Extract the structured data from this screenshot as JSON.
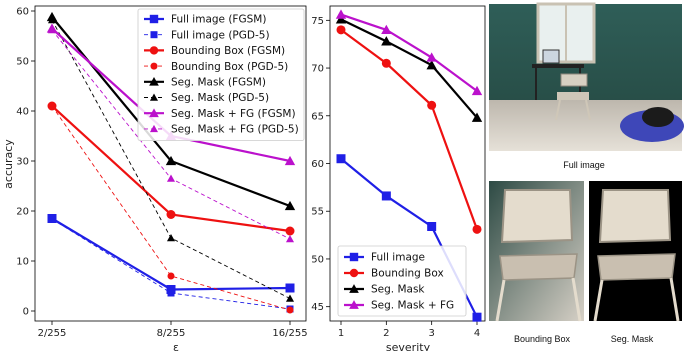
{
  "chart_data": [
    {
      "type": "line",
      "xlabel": "ε",
      "ylabel": "accuracy",
      "categories": [
        "2/255",
        "8/255",
        "16/255"
      ],
      "ylim": [
        -2,
        61
      ],
      "yticks": [
        0,
        10,
        20,
        30,
        40,
        50,
        60
      ],
      "grid": false,
      "legend_position": "top-right",
      "series": [
        {
          "name": "Full image (FGSM)",
          "values": [
            18.5,
            4.3,
            4.6
          ],
          "color": "#1f1fe6",
          "dashed": false,
          "marker": "square"
        },
        {
          "name": "Full image (PGD-5)",
          "values": [
            18.4,
            3.6,
            0.4
          ],
          "color": "#1f1fe6",
          "dashed": true,
          "marker": "square"
        },
        {
          "name": "Bounding Box (FGSM)",
          "values": [
            41.0,
            19.3,
            16.0
          ],
          "color": "#ee1111",
          "dashed": false,
          "marker": "circle"
        },
        {
          "name": "Bounding Box (PGD-5)",
          "values": [
            41.0,
            7.0,
            0.2
          ],
          "color": "#ee1111",
          "dashed": true,
          "marker": "circle"
        },
        {
          "name": "Seg. Mask (FGSM)",
          "values": [
            58.8,
            30.0,
            21.0
          ],
          "color": "#000000",
          "dashed": false,
          "marker": "triangle"
        },
        {
          "name": "Seg. Mask (PGD-5)",
          "values": [
            58.2,
            14.6,
            2.5
          ],
          "color": "#000000",
          "dashed": true,
          "marker": "triangle"
        },
        {
          "name": "Seg. Mask + FG (FGSM)",
          "values": [
            56.5,
            35.0,
            30.0
          ],
          "color": "#bb11cc",
          "dashed": false,
          "marker": "triangle"
        },
        {
          "name": "Seg. Mask + FG (PGD-5)",
          "values": [
            56.2,
            26.5,
            14.4
          ],
          "color": "#bb11cc",
          "dashed": true,
          "marker": "triangle"
        }
      ]
    },
    {
      "type": "line",
      "xlabel": "severity",
      "ylabel": "",
      "x": [
        1,
        2,
        3,
        4
      ],
      "xticks": [
        "1",
        "2",
        "3",
        "4"
      ],
      "ylim": [
        43.5,
        76.5
      ],
      "yticks": [
        45,
        50,
        55,
        60,
        65,
        70,
        75
      ],
      "grid": false,
      "legend_position": "bottom-left",
      "series": [
        {
          "name": "Full image",
          "values": [
            60.5,
            56.6,
            53.4,
            43.9
          ],
          "color": "#1f1fe6",
          "marker": "square"
        },
        {
          "name": "Bounding Box",
          "values": [
            74.0,
            70.5,
            66.1,
            53.1
          ],
          "color": "#ee1111",
          "marker": "circle"
        },
        {
          "name": "Seg. Mask",
          "values": [
            75.1,
            72.8,
            70.3,
            64.8
          ],
          "color": "#000000",
          "marker": "triangle"
        },
        {
          "name": "Seg. Mask + FG",
          "values": [
            75.6,
            74.0,
            71.1,
            67.6
          ],
          "color": "#bb11cc",
          "marker": "triangle"
        }
      ]
    }
  ],
  "images": {
    "full_caption": "Full image",
    "bbox_caption": "Bounding Box",
    "seg_caption": "Seg. Mask"
  }
}
